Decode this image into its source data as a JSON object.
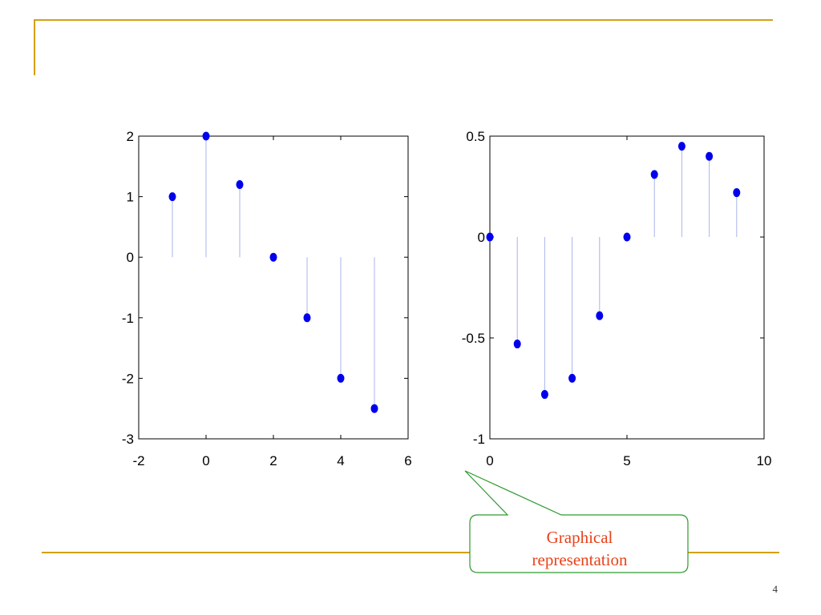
{
  "theme": {
    "rule_color": "#d4a017",
    "point_color": "#0000ee",
    "stem_color": "#a9b4ea",
    "callout_border": "#2e9a2e",
    "callout_text_color": "#e8421b"
  },
  "callout": {
    "line1": "Graphical",
    "line2": "representation"
  },
  "page_number": "4",
  "chart_data": [
    {
      "type": "stem",
      "x": [
        -1,
        0,
        1,
        2,
        3,
        4,
        5
      ],
      "y": [
        1,
        2,
        1.2,
        0,
        -1,
        -2,
        -2.5
      ],
      "xlim": [
        -2,
        6
      ],
      "ylim": [
        -3,
        2
      ],
      "xticks": [
        -2,
        0,
        2,
        4,
        6
      ],
      "yticks": [
        -3,
        -2,
        -1,
        0,
        1,
        2
      ],
      "title": "",
      "xlabel": "",
      "ylabel": "",
      "grid": false
    },
    {
      "type": "stem",
      "x": [
        0,
        1,
        2,
        3,
        4,
        5,
        6,
        7,
        8,
        9
      ],
      "y": [
        0,
        -0.53,
        -0.78,
        -0.7,
        -0.39,
        0,
        0.31,
        0.45,
        0.4,
        0.22
      ],
      "xlim": [
        0,
        10
      ],
      "ylim": [
        -1,
        0.5
      ],
      "xticks": [
        0,
        5,
        10
      ],
      "yticks": [
        -1,
        -0.5,
        0,
        0.5
      ],
      "title": "",
      "xlabel": "",
      "ylabel": "",
      "grid": false
    }
  ]
}
